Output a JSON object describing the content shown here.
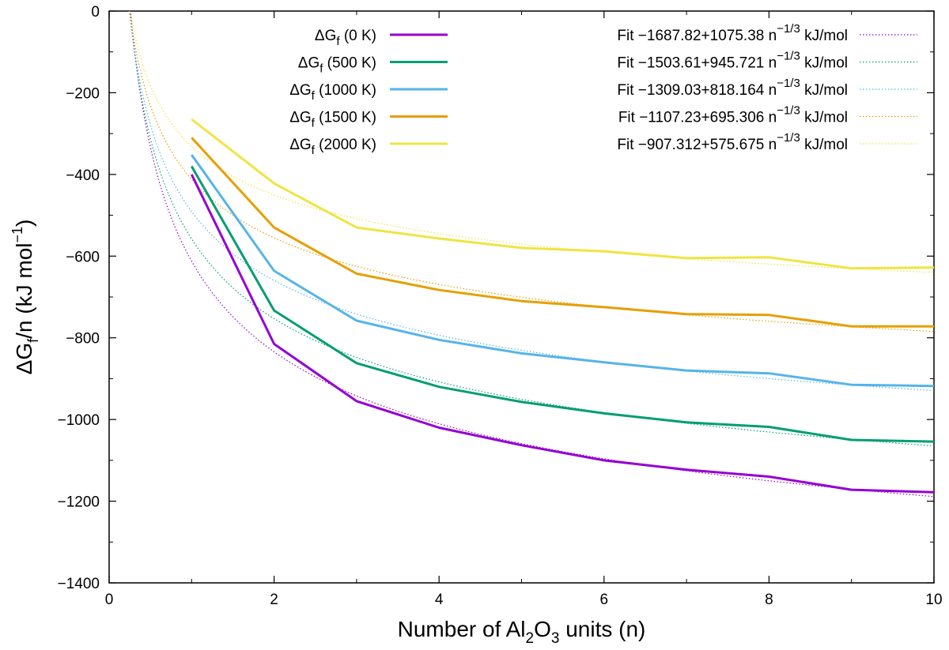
{
  "chart_data": {
    "type": "line",
    "xlabel": "Number of Al2O3 units (n)",
    "xlabel_parts": {
      "prefix": "Number of Al",
      "sub1": "2",
      "mid": "O",
      "sub2": "3",
      "suffix": " units (n)"
    },
    "ylabel": "ΔGf/n (kJ mol−1)",
    "ylabel_parts": {
      "prefix": "ΔG",
      "sub": "f",
      "mid": "/n (kJ mol",
      "sup": "−1",
      "suffix": ")"
    },
    "xlim": [
      0,
      10
    ],
    "ylim": [
      -1400,
      0
    ],
    "xticks": [
      0,
      2,
      4,
      6,
      8,
      10
    ],
    "yticks": [
      0,
      -200,
      -400,
      -600,
      -800,
      -1000,
      -1200,
      -1400
    ],
    "grid": false,
    "legend_position": "top",
    "x": [
      1,
      2,
      3,
      4,
      5,
      6,
      7,
      8,
      9,
      10
    ],
    "series": [
      {
        "name": "ΔGf (0 K)",
        "label_prefix": "ΔG",
        "label_sub": "f",
        "label_suffix": " (0 K)",
        "color": "#9400d3",
        "values": [
          -400,
          -815,
          -955,
          -1020,
          -1063,
          -1100,
          -1123,
          -1140,
          -1172,
          -1178
        ]
      },
      {
        "name": "ΔGf (500 K)",
        "label_prefix": "ΔG",
        "label_sub": "f",
        "label_suffix": " (500 K)",
        "color": "#009e73",
        "values": [
          -380,
          -733,
          -862,
          -920,
          -957,
          -985,
          -1007,
          -1018,
          -1050,
          -1054
        ]
      },
      {
        "name": "ΔGf (1000 K)",
        "label_prefix": "ΔG",
        "label_sub": "f",
        "label_suffix": " (1000 K)",
        "color": "#56b4e9",
        "values": [
          -352,
          -636,
          -758,
          -805,
          -838,
          -860,
          -880,
          -887,
          -915,
          -918
        ]
      },
      {
        "name": "ΔGf (1500 K)",
        "label_prefix": "ΔG",
        "label_sub": "f",
        "label_suffix": " (1500 K)",
        "color": "#e69f00",
        "values": [
          -310,
          -530,
          -643,
          -683,
          -710,
          -725,
          -742,
          -744,
          -772,
          -772
        ]
      },
      {
        "name": "ΔGf (2000 K)",
        "label_prefix": "ΔG",
        "label_sub": "f",
        "label_suffix": " (2000 K)",
        "color": "#f0e442",
        "values": [
          -265,
          -422,
          -530,
          -557,
          -580,
          -588,
          -605,
          -603,
          -630,
          -628
        ]
      }
    ],
    "fits": [
      {
        "name": "Fit −1687.82+1075.38 n−1/3 kJ/mol",
        "label_main": "Fit −1687.82+1075.38 n",
        "label_sup": "−1/3",
        "label_unit": " kJ/mol",
        "a": -1687.82,
        "b": 1075.38,
        "color": "#9400d3"
      },
      {
        "name": "Fit −1503.61+945.721 n−1/3 kJ/mol",
        "label_main": "Fit −1503.61+945.721 n",
        "label_sup": "−1/3",
        "label_unit": " kJ/mol",
        "a": -1503.61,
        "b": 945.721,
        "color": "#009e73"
      },
      {
        "name": "Fit −1309.03+818.164 n−1/3 kJ/mol",
        "label_main": "Fit −1309.03+818.164 n",
        "label_sup": "−1/3",
        "label_unit": " kJ/mol",
        "a": -1309.03,
        "b": 818.164,
        "color": "#56b4e9"
      },
      {
        "name": "Fit −1107.23+695.306 n−1/3 kJ/mol",
        "label_main": "Fit −1107.23+695.306 n",
        "label_sup": "−1/3",
        "label_unit": " kJ/mol",
        "a": -1107.23,
        "b": 695.306,
        "color": "#e69f00"
      },
      {
        "name": "Fit −907.312+575.675 n−1/3 kJ/mol",
        "label_main": "Fit −907.312+575.675 n",
        "label_sup": "−1/3",
        "label_unit": " kJ/mol",
        "a": -907.312,
        "b": 575.675,
        "color": "#f0e442"
      }
    ]
  }
}
